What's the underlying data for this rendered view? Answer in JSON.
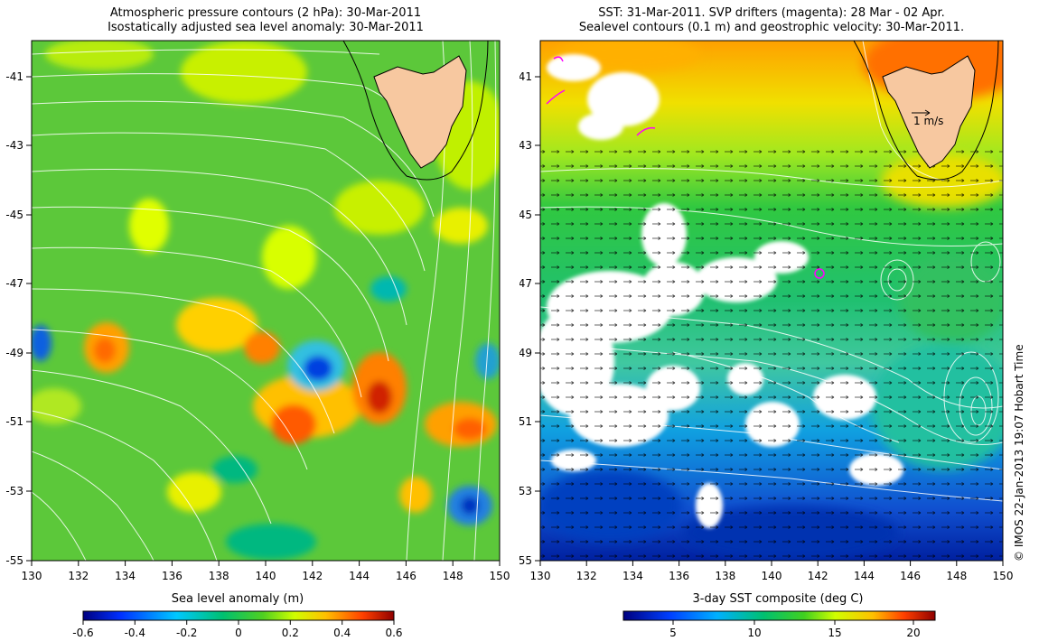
{
  "left": {
    "title_line1": "Atmospheric pressure contours (2 hPa): 30-Mar-2011",
    "title_line2": "Isostatically adjusted sea level anomaly: 30-Mar-2011",
    "x_ticks": [
      "130",
      "132",
      "134",
      "136",
      "138",
      "140",
      "142",
      "144",
      "146",
      "148",
      "150"
    ],
    "y_ticks": [
      "-41",
      "-43",
      "-45",
      "-47",
      "-49",
      "-51",
      "-53",
      "-55"
    ],
    "colorbar": {
      "label": "Sea level anomaly (m)",
      "ticks": [
        "-0.6",
        "-0.4",
        "-0.2",
        "0",
        "0.2",
        "0.4",
        "0.6"
      ]
    }
  },
  "right": {
    "title_line1": "SST: 31-Mar-2011. SVP drifters (magenta): 28 Mar - 02 Apr.",
    "title_line2": "Sealevel contours (0.1 m) and geostrophic velocity: 30-Mar-2011.",
    "x_ticks": [
      "130",
      "132",
      "134",
      "136",
      "138",
      "140",
      "142",
      "144",
      "146",
      "148",
      "150"
    ],
    "y_ticks": [
      "-41",
      "-43",
      "-45",
      "-47",
      "-49",
      "-51",
      "-53",
      "-55"
    ],
    "scale_arrow_label": "1 m/s",
    "colorbar": {
      "label": "3-day SST composite (deg C)",
      "ticks": [
        "5",
        "10",
        "15",
        "20"
      ]
    }
  },
  "credit": "© IMOS 22-Jan-2013 19:07 Hobart Time",
  "colors": {
    "land": "#f7c8a0",
    "sla_scale": [
      "#00007f",
      "#0040ff",
      "#00c0ff",
      "#00c080",
      "#40d020",
      "#c0ff00",
      "#ffd000",
      "#ff6000",
      "#a00000"
    ],
    "sst_scale": [
      "#00007f",
      "#0040ff",
      "#00a0ff",
      "#00c080",
      "#30d030",
      "#c0ff00",
      "#ffc000",
      "#ff6000",
      "#a00000"
    ]
  }
}
